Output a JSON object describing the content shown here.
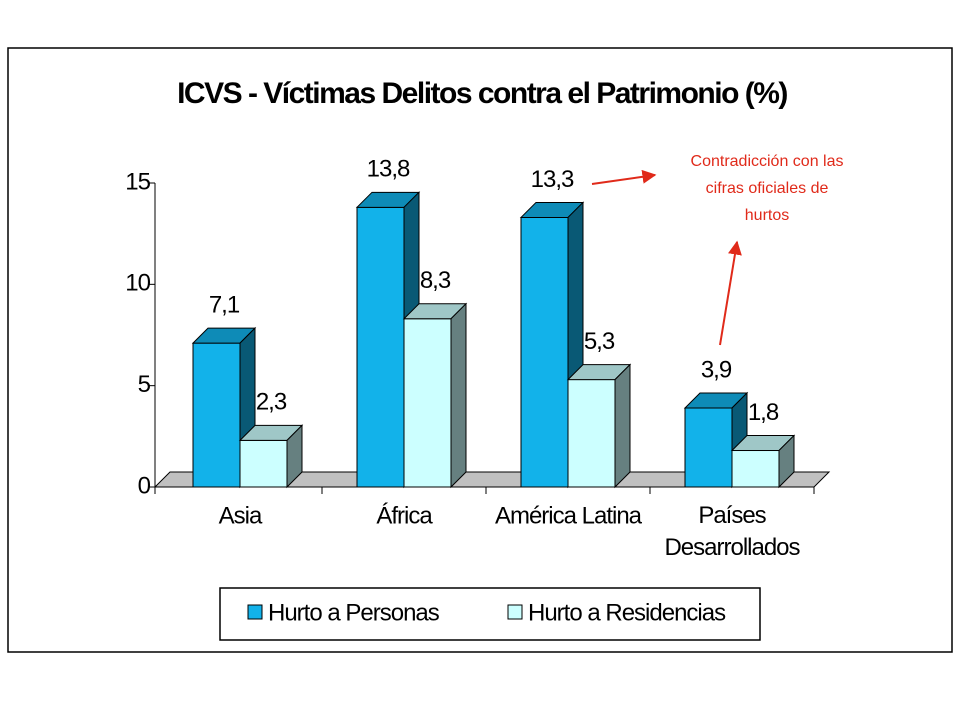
{
  "chart_data": {
    "type": "bar3d",
    "title": "ICVS - Víctimas Delitos contra el Patrimonio (%)",
    "categories": [
      "Asia",
      "África",
      "América Latina",
      "Países Desarrollados"
    ],
    "series": [
      {
        "name": "Hurto a Personas",
        "color": "#12b2ea",
        "values": [
          7.1,
          13.8,
          13.3,
          3.9
        ],
        "value_labels": [
          "7,1",
          "13,8",
          "13,3",
          "3,9"
        ]
      },
      {
        "name": "Hurto a Residencias",
        "color": "#ccffff",
        "values": [
          2.3,
          8.3,
          5.3,
          1.8
        ],
        "value_labels": [
          "2,3",
          "8,3",
          "5,3",
          "1,8"
        ]
      }
    ],
    "ylim": [
      0,
      15
    ],
    "yticks": [
      0,
      5,
      10,
      15
    ],
    "annotation": [
      "Contradicción con las",
      "cifras oficiales de",
      "hurtos"
    ],
    "legend": "bottom"
  }
}
